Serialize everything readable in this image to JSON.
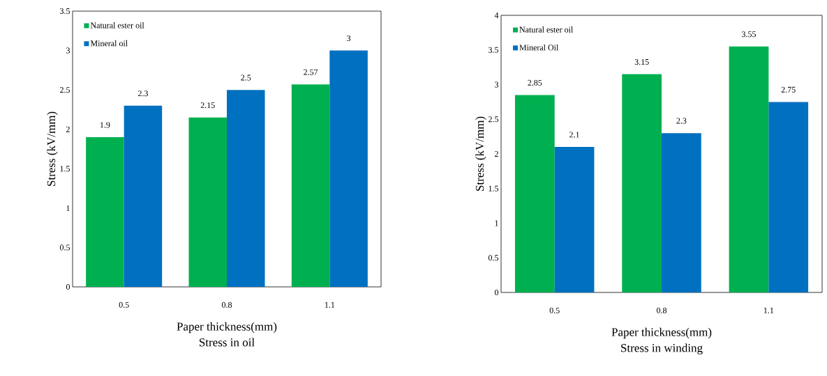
{
  "chart_data": [
    {
      "type": "bar",
      "title": "Stress in oil",
      "xlabel": "Paper thickness(mm)",
      "ylabel": "Stress (kV/mm)",
      "categories": [
        "0.5",
        "0.8",
        "1.1"
      ],
      "series": [
        {
          "name": "Natural ester oil",
          "color": "#00b050",
          "values": [
            1.9,
            2.15,
            2.57
          ]
        },
        {
          "name": "Mineral oil",
          "color": "#0070c0",
          "values": [
            2.3,
            2.5,
            3
          ]
        }
      ],
      "ylim": [
        0,
        3.5
      ],
      "yticks": [
        0,
        0.5,
        1,
        1.5,
        2,
        2.5,
        3,
        3.5
      ],
      "data_labels": true,
      "legend": "top left"
    },
    {
      "type": "bar",
      "title": "Stress in winding",
      "xlabel": "Paper thickness(mm)",
      "ylabel": "Stress (kV/mm)",
      "categories": [
        "0.5",
        "0.8",
        "1.1"
      ],
      "series": [
        {
          "name": "Natural ester oil",
          "color": "#00b050",
          "values": [
            2.85,
            3.15,
            3.55
          ]
        },
        {
          "name": "Mineral Oil",
          "color": "#0070c0",
          "values": [
            2.1,
            2.3,
            2.75
          ]
        }
      ],
      "ylim": [
        0,
        4
      ],
      "yticks": [
        0,
        0.5,
        1,
        1.5,
        2,
        2.5,
        3,
        3.5,
        4
      ],
      "data_labels": true,
      "legend": "top left"
    }
  ]
}
